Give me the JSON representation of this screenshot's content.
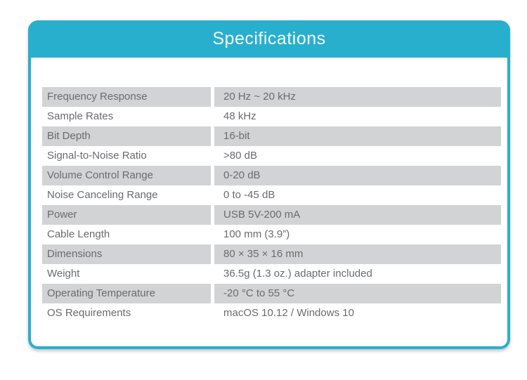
{
  "colors": {
    "accent": "#29afce",
    "row_alt_bg": "#d2d3d4",
    "body_text": "#6a6b6e",
    "title_text": "#f2fbfd"
  },
  "card": {
    "title": "Specifications"
  },
  "table": {
    "rows": [
      {
        "label": "Frequency Response",
        "value": "20 Hz ~ 20 kHz"
      },
      {
        "label": "Sample Rates",
        "value": "48 kHz"
      },
      {
        "label": "Bit Depth",
        "value": "16-bit"
      },
      {
        "label": "Signal-to-Noise Ratio",
        "value": ">80 dB"
      },
      {
        "label": "Volume Control Range",
        "value": "0-20 dB"
      },
      {
        "label": "Noise Canceling Range",
        "value": "0 to -45 dB"
      },
      {
        "label": "Power",
        "value": "USB 5V-200 mA"
      },
      {
        "label": "Cable Length",
        "value": "100 mm (3.9”)"
      },
      {
        "label": "Dimensions",
        "value": "80 × 35 × 16 mm"
      },
      {
        "label": "Weight",
        "value": "36.5g (1.3 oz.) adapter included"
      },
      {
        "label": "Operating Temperature",
        "value": "-20 °C to 55 °C"
      },
      {
        "label": "OS Requirements",
        "value": "macOS 10.12 / Windows 10"
      }
    ]
  }
}
